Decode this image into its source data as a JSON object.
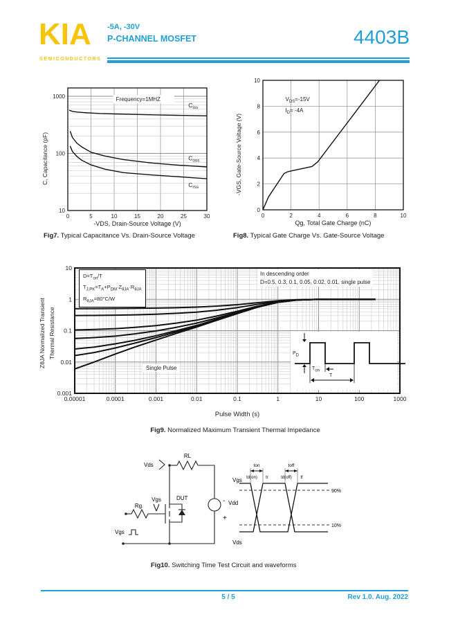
{
  "header": {
    "logo": "KIA",
    "logo_sub": "SEMICONDUCTORS",
    "subtitle_line1": "-5A,  -30V",
    "subtitle_line2": "P-CHANNEL MOSFET",
    "part_number": "4403B",
    "accent_color": "#1F9FD8",
    "logo_color": "#F6C50B"
  },
  "figures": {
    "fig7": {
      "caption_bold": "Fig7.",
      "caption_rest": " Typical Capacitance Vs. Drain-Source Voltage",
      "xlabel": "-VDS, Drain-Source Voltage (V)",
      "ylabel": "C, Capacitance (pF)"
    },
    "fig8": {
      "caption_bold": "Fig8.",
      "caption_rest": " Typical Gate Charge Vs. Gate-Source Voltage",
      "xlabel": "Qg, Total Gate Charge (nC)",
      "ylabel": "-VGS, Gate-Source Voltage (V)"
    },
    "fig9": {
      "caption_bold": "Fig9.",
      "caption_rest": " Normalized Maximum Transient Thermal Impedance",
      "xlabel": "Pulse Width (s)",
      "ylabel_line1": "ZθJA Normalized Transient",
      "ylabel_line2": "Thermal Resistance",
      "box": {
        "line1": [
          {
            "t": "D=T"
          },
          {
            "t": "on",
            "sub": 1
          },
          {
            "t": "/T"
          }
        ],
        "line2": [
          {
            "t": "T"
          },
          {
            "t": "J,PK",
            "sub": 1
          },
          {
            "t": "=T"
          },
          {
            "t": "A",
            "sub": 1
          },
          {
            "t": "+P"
          },
          {
            "t": "DM",
            "sub": 1
          },
          {
            "t": "·Z"
          },
          {
            "t": "θJA",
            "sub": 1
          },
          {
            "t": "·R"
          },
          {
            "t": "θJA",
            "sub": 1
          }
        ],
        "line3": [
          {
            "t": "R"
          },
          {
            "t": "θJA",
            "sub": 1
          },
          {
            "t": "=80°C/W"
          }
        ]
      },
      "order_line1": "In descending order",
      "order_line2": "D=0.5, 0.3, 0.1, 0.05, 0.02, 0.01, single pulse",
      "single_pulse": "Single Pulse",
      "inset": {
        "pd": [
          {
            "t": "P"
          },
          {
            "t": "D",
            "sub": 1
          }
        ],
        "ton": [
          {
            "t": "T"
          },
          {
            "t": "on",
            "sub": 1
          }
        ],
        "t": [
          {
            "t": "T"
          }
        ]
      }
    },
    "fig10": {
      "caption_bold": "Fig10.",
      "caption_rest": " Switching Time Test Circuit and waveforms",
      "labels": {
        "rl": "RL",
        "vds_probe": "Vds",
        "vgs_probe": "Vgs",
        "rg": "Rg",
        "pulse_src": "Vgs",
        "dut": "DUT",
        "vdd": "Vdd",
        "minus": "-",
        "plus": "+",
        "wf_vgs": "Vgs",
        "wf_vds": "Vds",
        "p90": "90%",
        "p10": "10%",
        "ton": "ton",
        "toff": "toff",
        "td_on": "td(on)",
        "tr": "tr",
        "td_off": "td(off)",
        "tf": "tf"
      }
    }
  },
  "footer": {
    "page": "5 / 5",
    "rev": "Rev 1.0. Aug. 2022"
  },
  "chart_data": [
    {
      "id": "fig7",
      "type": "line",
      "title": "Typical Capacitance Vs. Drain-Source Voltage",
      "xlabel": "-VDS, Drain-Source Voltage (V)",
      "ylabel": "C, Capacitance (pF)",
      "xscale": "linear",
      "yscale": "log",
      "xlim": [
        0,
        30
      ],
      "ylim": [
        10,
        1400
      ],
      "xticks": [
        0,
        5,
        10,
        15,
        20,
        25,
        30
      ],
      "yticks": [
        10,
        100,
        1000
      ],
      "grid": true,
      "annotations": [
        {
          "x": 10.4,
          "y": 820,
          "bg": true,
          "bgw": 88,
          "parts": [
            {
              "t": "Frequency=1MHZ"
            }
          ]
        }
      ],
      "series": [
        {
          "name": "Ciss",
          "label": {
            "main": "C",
            "sub": "iss",
            "x": 26,
            "y": 640
          },
          "x": [
            0.3,
            1,
            2,
            4,
            7,
            10,
            15,
            20,
            25,
            30
          ],
          "y": [
            570,
            545,
            530,
            515,
            500,
            492,
            480,
            470,
            462,
            455
          ]
        },
        {
          "name": "Coss",
          "label": {
            "main": "C",
            "sub": "oss",
            "x": 26,
            "y": 76
          },
          "x": [
            0.5,
            1,
            2,
            3,
            5,
            8,
            12,
            18,
            24,
            30
          ],
          "y": [
            245,
            190,
            150,
            130,
            105,
            90,
            78,
            68,
            62,
            58
          ]
        },
        {
          "name": "Crss",
          "label": {
            "main": "C",
            "sub": "rss",
            "x": 26,
            "y": 26
          },
          "x": [
            0.5,
            1,
            2,
            3,
            5,
            8,
            12,
            18,
            24,
            30
          ],
          "y": [
            135,
            108,
            88,
            76,
            63,
            53,
            46,
            42,
            39,
            36
          ]
        }
      ]
    },
    {
      "id": "fig8",
      "type": "line",
      "title": "Typical Gate Charge Vs. Gate-Source Voltage",
      "xlabel": "Qg, Total Gate Charge (nC)",
      "ylabel": "-VGS, Gate-Source Voltage (V)",
      "xscale": "linear",
      "yscale": "linear",
      "xlim": [
        0,
        10
      ],
      "ylim": [
        0,
        10
      ],
      "xticks": [
        0,
        2,
        4,
        6,
        8,
        10
      ],
      "yticks": [
        0,
        2,
        4,
        6,
        8,
        10
      ],
      "grid": true,
      "annotations": [
        {
          "x": 1.6,
          "y": 8.4,
          "parts": [
            {
              "t": "V"
            },
            {
              "t": "DS",
              "sub": 1
            },
            {
              "t": "=-15V"
            }
          ]
        },
        {
          "x": 1.6,
          "y": 7.55,
          "parts": [
            {
              "t": "I"
            },
            {
              "t": "D",
              "sub": 1
            },
            {
              "t": "= -4A"
            }
          ]
        }
      ],
      "series": [
        {
          "name": "-VGS",
          "x": [
            0,
            0.4,
            1.5,
            1.8,
            3.5,
            3.9,
            8.3
          ],
          "y": [
            0,
            1.0,
            2.8,
            2.95,
            3.35,
            3.7,
            10
          ]
        }
      ]
    },
    {
      "id": "fig9",
      "type": "line",
      "title": "Normalized Maximum Transient Thermal Impedance",
      "xlabel": "Pulse Width (s)",
      "ylabel": "ZθJA Normalized Transient Thermal Resistance",
      "xscale": "log",
      "yscale": "log",
      "xlim": [
        1e-05,
        1000
      ],
      "ylim": [
        0.001,
        10
      ],
      "xticks": [
        1e-05,
        0.0001,
        0.001,
        0.01,
        0.1,
        1,
        10,
        100,
        1000
      ],
      "yticks": [
        10,
        1,
        0.1,
        0.01,
        0.001
      ],
      "grid": true,
      "x": [
        1e-05,
        3e-05,
        0.0001,
        0.0003,
        0.001,
        0.003,
        0.01,
        0.03,
        0.1,
        0.3,
        1,
        3,
        10,
        30,
        100,
        250
      ],
      "series": [
        {
          "name": "D=0.5",
          "values": [
            0.503,
            0.505,
            0.509,
            0.515,
            0.525,
            0.54,
            0.565,
            0.605,
            0.675,
            0.775,
            0.9,
            0.975,
            1,
            1,
            1,
            1
          ]
        },
        {
          "name": "D=0.3",
          "values": [
            0.304,
            0.307,
            0.313,
            0.321,
            0.335,
            0.356,
            0.391,
            0.447,
            0.545,
            0.685,
            0.86,
            0.965,
            1,
            1,
            1,
            1
          ]
        },
        {
          "name": "D=0.1",
          "values": [
            0.105,
            0.109,
            0.116,
            0.127,
            0.145,
            0.172,
            0.217,
            0.289,
            0.415,
            0.595,
            0.82,
            0.955,
            1,
            1,
            1,
            1
          ]
        },
        {
          "name": "D=0.05",
          "values": [
            0.056,
            0.06,
            0.067,
            0.079,
            0.098,
            0.126,
            0.174,
            0.25,
            0.383,
            0.573,
            0.81,
            0.953,
            1,
            1,
            1,
            1
          ]
        },
        {
          "name": "D=0.02",
          "values": [
            0.026,
            0.03,
            0.038,
            0.049,
            0.069,
            0.098,
            0.147,
            0.226,
            0.363,
            0.559,
            0.804,
            0.951,
            1,
            1,
            1,
            1
          ]
        },
        {
          "name": "D=0.01",
          "values": [
            0.016,
            0.02,
            0.028,
            0.04,
            0.06,
            0.089,
            0.139,
            0.218,
            0.357,
            0.555,
            0.802,
            0.951,
            1,
            1,
            1,
            1
          ]
        },
        {
          "name": "single pulse",
          "values": [
            0.006,
            0.01,
            0.018,
            0.03,
            0.05,
            0.08,
            0.13,
            0.21,
            0.35,
            0.55,
            0.8,
            0.95,
            1,
            1,
            1,
            1
          ]
        }
      ]
    }
  ]
}
